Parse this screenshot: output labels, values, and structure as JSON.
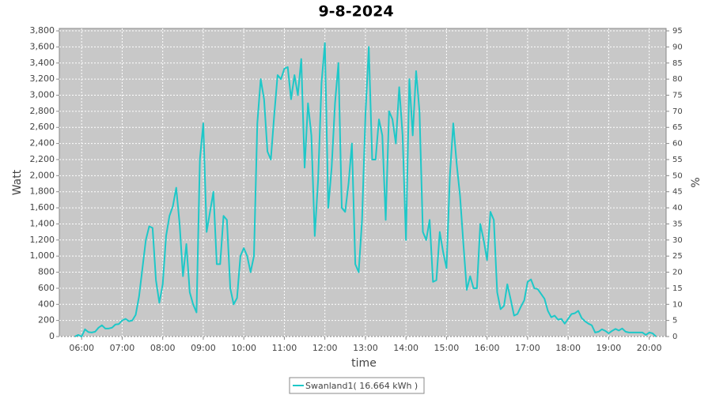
{
  "chart_data": {
    "type": "line",
    "title": "9-8-2024",
    "x_label": "time",
    "y_label": "Watt",
    "y2_label": "%",
    "grid": true,
    "xlim": [
      327,
      1225
    ],
    "xticks": [
      {
        "value": 360,
        "label": "06:00"
      },
      {
        "value": 420,
        "label": "07:00"
      },
      {
        "value": 480,
        "label": "08:00"
      },
      {
        "value": 540,
        "label": "09:00"
      },
      {
        "value": 600,
        "label": "10:00"
      },
      {
        "value": 660,
        "label": "11:00"
      },
      {
        "value": 720,
        "label": "12:00"
      },
      {
        "value": 780,
        "label": "13:00"
      },
      {
        "value": 840,
        "label": "14:00"
      },
      {
        "value": 900,
        "label": "15:00"
      },
      {
        "value": 960,
        "label": "16:00"
      },
      {
        "value": 1020,
        "label": "17:00"
      },
      {
        "value": 1080,
        "label": "18:00"
      },
      {
        "value": 1140,
        "label": "19:00"
      },
      {
        "value": 1200,
        "label": "20:00"
      }
    ],
    "ylim": [
      0,
      3830
    ],
    "yticks": [
      0,
      200,
      400,
      600,
      800,
      {
        "value": 1000,
        "label": "1,000"
      },
      {
        "value": 1200,
        "label": "1,200"
      },
      {
        "value": 1400,
        "label": "1,400"
      },
      {
        "value": 1600,
        "label": "1,600"
      },
      {
        "value": 1800,
        "label": "1,800"
      },
      {
        "value": 2000,
        "label": "2,000"
      },
      {
        "value": 2200,
        "label": "2,200"
      },
      {
        "value": 2400,
        "label": "2,400"
      },
      {
        "value": 2600,
        "label": "2,600"
      },
      {
        "value": 2800,
        "label": "2,800"
      },
      {
        "value": 3000,
        "label": "3,000"
      },
      {
        "value": 3200,
        "label": "3,200"
      },
      {
        "value": 3400,
        "label": "3,400"
      },
      {
        "value": 3600,
        "label": "3,600"
      },
      {
        "value": 3800,
        "label": "3,800"
      }
    ],
    "y2lim": [
      0,
      95.75
    ],
    "y2ticks": [
      0,
      5,
      10,
      15,
      20,
      25,
      30,
      35,
      40,
      45,
      50,
      55,
      60,
      65,
      70,
      75,
      80,
      85,
      90,
      95
    ],
    "x": [
      350,
      355,
      360,
      365,
      370,
      375,
      380,
      385,
      390,
      395,
      400,
      405,
      410,
      415,
      420,
      425,
      430,
      435,
      440,
      445,
      450,
      455,
      460,
      465,
      470,
      475,
      480,
      485,
      490,
      495,
      500,
      505,
      510,
      515,
      520,
      525,
      530,
      535,
      540,
      545,
      550,
      555,
      560,
      565,
      570,
      575,
      580,
      585,
      590,
      595,
      600,
      605,
      610,
      615,
      620,
      625,
      630,
      635,
      640,
      645,
      650,
      655,
      660,
      665,
      670,
      675,
      680,
      685,
      690,
      695,
      700,
      705,
      710,
      715,
      720,
      725,
      730,
      735,
      740,
      745,
      750,
      755,
      760,
      765,
      770,
      775,
      780,
      785,
      790,
      795,
      800,
      805,
      810,
      815,
      820,
      825,
      830,
      835,
      840,
      845,
      850,
      855,
      860,
      865,
      870,
      875,
      880,
      885,
      890,
      895,
      900,
      905,
      910,
      915,
      920,
      925,
      930,
      935,
      940,
      945,
      950,
      955,
      960,
      965,
      970,
      975,
      980,
      985,
      990,
      995,
      1000,
      1005,
      1010,
      1015,
      1020,
      1025,
      1030,
      1035,
      1040,
      1045,
      1050,
      1055,
      1060,
      1065,
      1070,
      1075,
      1080,
      1085,
      1090,
      1095,
      1100,
      1105,
      1110,
      1115,
      1120,
      1125,
      1130,
      1135,
      1140,
      1145,
      1150,
      1155,
      1160,
      1165,
      1170,
      1175,
      1180,
      1185,
      1190,
      1195,
      1200,
      1205,
      1210
    ],
    "series": [
      {
        "name": "Swanland1( 16.664 kWh )",
        "color": "#1ec8c8",
        "values": [
          0,
          20,
          0,
          90,
          55,
          50,
          60,
          110,
          140,
          100,
          100,
          110,
          150,
          155,
          200,
          220,
          190,
          200,
          270,
          500,
          850,
          1200,
          1370,
          1350,
          700,
          420,
          650,
          1250,
          1500,
          1620,
          1850,
          1400,
          750,
          1150,
          550,
          400,
          300,
          2200,
          2650,
          1300,
          1550,
          1800,
          900,
          900,
          1500,
          1450,
          600,
          400,
          480,
          1000,
          1100,
          1000,
          800,
          1000,
          2650,
          3200,
          2950,
          2300,
          2200,
          2750,
          3250,
          3200,
          3330,
          3350,
          2950,
          3250,
          3000,
          3450,
          2100,
          2900,
          2500,
          1250,
          1950,
          3150,
          3650,
          1600,
          2100,
          2900,
          3400,
          1600,
          1550,
          1900,
          2400,
          900,
          800,
          1450,
          2750,
          3600,
          2200,
          2200,
          2700,
          2500,
          1450,
          2800,
          2700,
          2400,
          3100,
          2500,
          1200,
          3200,
          2500,
          3300,
          2800,
          1300,
          1200,
          1450,
          680,
          700,
          1300,
          1050,
          850,
          2000,
          2650,
          2150,
          1750,
          1150,
          580,
          750,
          600,
          600,
          1400,
          1200,
          950,
          1550,
          1450,
          550,
          340,
          380,
          650,
          460,
          260,
          280,
          370,
          450,
          680,
          710,
          600,
          590,
          530,
          470,
          320,
          240,
          260,
          210,
          220,
          160,
          220,
          280,
          290,
          320,
          230,
          190,
          160,
          140,
          50,
          60,
          90,
          70,
          40,
          70,
          95,
          75,
          100,
          60,
          50,
          50,
          50,
          50,
          50,
          20,
          50,
          40,
          0
        ]
      }
    ]
  }
}
